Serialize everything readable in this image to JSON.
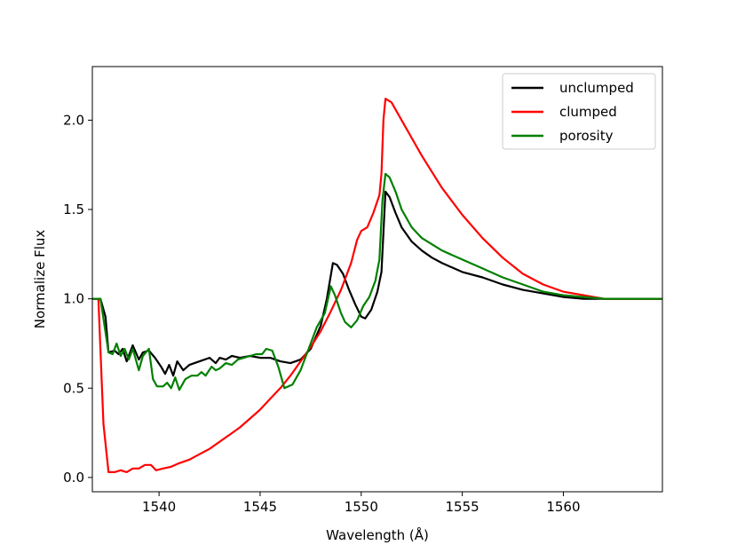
{
  "chart_data": {
    "type": "line",
    "xlabel": "Wavelength (Å)",
    "ylabel": "Normalize Flux",
    "xlim": [
      1536.7,
      1564.9
    ],
    "ylim": [
      -0.08,
      2.3
    ],
    "xticks": [
      1540,
      1545,
      1550,
      1555,
      1560
    ],
    "xtick_labels": [
      "1540",
      "1545",
      "1550",
      "1555",
      "1560"
    ],
    "yticks": [
      0.0,
      0.5,
      1.0,
      1.5,
      2.0
    ],
    "ytick_labels": [
      "0.0",
      "0.5",
      "1.0",
      "1.5",
      "2.0"
    ],
    "grid": false,
    "legend_position": "top-right",
    "series": [
      {
        "name": "unclumped",
        "color": "#000000",
        "points": [
          [
            1536.7,
            1.0
          ],
          [
            1537.1,
            1.0
          ],
          [
            1537.35,
            0.9
          ],
          [
            1537.5,
            0.7
          ],
          [
            1537.8,
            0.71
          ],
          [
            1538.0,
            0.69
          ],
          [
            1538.2,
            0.72
          ],
          [
            1538.4,
            0.65
          ],
          [
            1538.7,
            0.74
          ],
          [
            1539.0,
            0.66
          ],
          [
            1539.2,
            0.7
          ],
          [
            1539.5,
            0.71
          ],
          [
            1539.8,
            0.67
          ],
          [
            1540.1,
            0.62
          ],
          [
            1540.3,
            0.58
          ],
          [
            1540.5,
            0.63
          ],
          [
            1540.7,
            0.57
          ],
          [
            1540.9,
            0.65
          ],
          [
            1541.2,
            0.6
          ],
          [
            1541.5,
            0.63
          ],
          [
            1542.0,
            0.65
          ],
          [
            1542.5,
            0.67
          ],
          [
            1542.8,
            0.64
          ],
          [
            1543.0,
            0.67
          ],
          [
            1543.3,
            0.66
          ],
          [
            1543.6,
            0.68
          ],
          [
            1544.0,
            0.67
          ],
          [
            1544.5,
            0.68
          ],
          [
            1545.0,
            0.67
          ],
          [
            1545.5,
            0.67
          ],
          [
            1546.0,
            0.65
          ],
          [
            1546.5,
            0.64
          ],
          [
            1547.0,
            0.66
          ],
          [
            1547.5,
            0.72
          ],
          [
            1548.0,
            0.85
          ],
          [
            1548.3,
            1.0
          ],
          [
            1548.6,
            1.2
          ],
          [
            1548.8,
            1.19
          ],
          [
            1549.1,
            1.14
          ],
          [
            1549.4,
            1.05
          ],
          [
            1549.7,
            0.97
          ],
          [
            1550.0,
            0.9
          ],
          [
            1550.2,
            0.89
          ],
          [
            1550.5,
            0.94
          ],
          [
            1550.8,
            1.04
          ],
          [
            1551.0,
            1.15
          ],
          [
            1551.2,
            1.6
          ],
          [
            1551.4,
            1.57
          ],
          [
            1551.7,
            1.48
          ],
          [
            1552.0,
            1.4
          ],
          [
            1552.5,
            1.32
          ],
          [
            1553.0,
            1.27
          ],
          [
            1553.5,
            1.23
          ],
          [
            1554.0,
            1.2
          ],
          [
            1555.0,
            1.15
          ],
          [
            1556.0,
            1.12
          ],
          [
            1557.0,
            1.08
          ],
          [
            1558.0,
            1.05
          ],
          [
            1559.0,
            1.03
          ],
          [
            1560.0,
            1.01
          ],
          [
            1561.0,
            1.0
          ],
          [
            1562.0,
            1.0
          ],
          [
            1564.9,
            1.0
          ]
        ]
      },
      {
        "name": "clumped",
        "color": "#ff0000",
        "points": [
          [
            1536.7,
            1.0
          ],
          [
            1537.0,
            1.0
          ],
          [
            1537.25,
            0.3
          ],
          [
            1537.5,
            0.03
          ],
          [
            1537.8,
            0.03
          ],
          [
            1538.1,
            0.04
          ],
          [
            1538.4,
            0.03
          ],
          [
            1538.7,
            0.05
          ],
          [
            1539.0,
            0.05
          ],
          [
            1539.3,
            0.07
          ],
          [
            1539.6,
            0.07
          ],
          [
            1539.85,
            0.04
          ],
          [
            1540.2,
            0.05
          ],
          [
            1540.6,
            0.06
          ],
          [
            1541.0,
            0.08
          ],
          [
            1541.5,
            0.1
          ],
          [
            1542.0,
            0.13
          ],
          [
            1542.5,
            0.16
          ],
          [
            1543.0,
            0.2
          ],
          [
            1543.5,
            0.24
          ],
          [
            1544.0,
            0.28
          ],
          [
            1544.5,
            0.33
          ],
          [
            1545.0,
            0.38
          ],
          [
            1545.5,
            0.44
          ],
          [
            1546.0,
            0.5
          ],
          [
            1546.5,
            0.57
          ],
          [
            1547.0,
            0.65
          ],
          [
            1547.5,
            0.73
          ],
          [
            1548.0,
            0.82
          ],
          [
            1548.5,
            0.93
          ],
          [
            1549.0,
            1.05
          ],
          [
            1549.5,
            1.2
          ],
          [
            1549.8,
            1.33
          ],
          [
            1550.0,
            1.38
          ],
          [
            1550.3,
            1.4
          ],
          [
            1550.6,
            1.48
          ],
          [
            1550.9,
            1.58
          ],
          [
            1551.0,
            1.7
          ],
          [
            1551.1,
            2.0
          ],
          [
            1551.2,
            2.12
          ],
          [
            1551.5,
            2.1
          ],
          [
            1552.0,
            2.0
          ],
          [
            1552.5,
            1.9
          ],
          [
            1553.0,
            1.8
          ],
          [
            1554.0,
            1.62
          ],
          [
            1555.0,
            1.47
          ],
          [
            1556.0,
            1.34
          ],
          [
            1557.0,
            1.23
          ],
          [
            1558.0,
            1.14
          ],
          [
            1559.0,
            1.08
          ],
          [
            1560.0,
            1.04
          ],
          [
            1561.0,
            1.02
          ],
          [
            1562.0,
            1.0
          ],
          [
            1564.9,
            1.0
          ]
        ]
      },
      {
        "name": "porosity",
        "color": "#008000",
        "points": [
          [
            1536.7,
            1.0
          ],
          [
            1537.1,
            1.0
          ],
          [
            1537.3,
            0.85
          ],
          [
            1537.5,
            0.7
          ],
          [
            1537.7,
            0.69
          ],
          [
            1537.9,
            0.75
          ],
          [
            1538.1,
            0.68
          ],
          [
            1538.3,
            0.72
          ],
          [
            1538.5,
            0.66
          ],
          [
            1538.7,
            0.72
          ],
          [
            1539.0,
            0.6
          ],
          [
            1539.2,
            0.68
          ],
          [
            1539.5,
            0.72
          ],
          [
            1539.7,
            0.55
          ],
          [
            1539.9,
            0.51
          ],
          [
            1540.2,
            0.51
          ],
          [
            1540.4,
            0.53
          ],
          [
            1540.6,
            0.5
          ],
          [
            1540.8,
            0.56
          ],
          [
            1541.0,
            0.49
          ],
          [
            1541.3,
            0.55
          ],
          [
            1541.6,
            0.57
          ],
          [
            1541.9,
            0.57
          ],
          [
            1542.1,
            0.59
          ],
          [
            1542.3,
            0.57
          ],
          [
            1542.6,
            0.62
          ],
          [
            1542.8,
            0.6
          ],
          [
            1543.0,
            0.61
          ],
          [
            1543.3,
            0.64
          ],
          [
            1543.6,
            0.63
          ],
          [
            1543.9,
            0.66
          ],
          [
            1544.2,
            0.67
          ],
          [
            1544.5,
            0.68
          ],
          [
            1544.8,
            0.69
          ],
          [
            1545.1,
            0.69
          ],
          [
            1545.3,
            0.72
          ],
          [
            1545.6,
            0.71
          ],
          [
            1545.9,
            0.62
          ],
          [
            1546.2,
            0.5
          ],
          [
            1546.6,
            0.52
          ],
          [
            1547.0,
            0.6
          ],
          [
            1547.4,
            0.72
          ],
          [
            1547.8,
            0.84
          ],
          [
            1548.2,
            0.92
          ],
          [
            1548.5,
            1.07
          ],
          [
            1548.7,
            1.02
          ],
          [
            1549.0,
            0.92
          ],
          [
            1549.2,
            0.87
          ],
          [
            1549.5,
            0.84
          ],
          [
            1549.8,
            0.88
          ],
          [
            1550.1,
            0.96
          ],
          [
            1550.4,
            1.01
          ],
          [
            1550.7,
            1.1
          ],
          [
            1550.9,
            1.22
          ],
          [
            1551.05,
            1.55
          ],
          [
            1551.2,
            1.7
          ],
          [
            1551.4,
            1.68
          ],
          [
            1551.7,
            1.6
          ],
          [
            1552.0,
            1.5
          ],
          [
            1552.5,
            1.4
          ],
          [
            1553.0,
            1.34
          ],
          [
            1554.0,
            1.27
          ],
          [
            1555.0,
            1.22
          ],
          [
            1556.0,
            1.17
          ],
          [
            1557.0,
            1.12
          ],
          [
            1558.0,
            1.08
          ],
          [
            1559.0,
            1.04
          ],
          [
            1560.0,
            1.02
          ],
          [
            1561.0,
            1.01
          ],
          [
            1562.0,
            1.0
          ],
          [
            1564.9,
            1.0
          ]
        ]
      }
    ]
  }
}
